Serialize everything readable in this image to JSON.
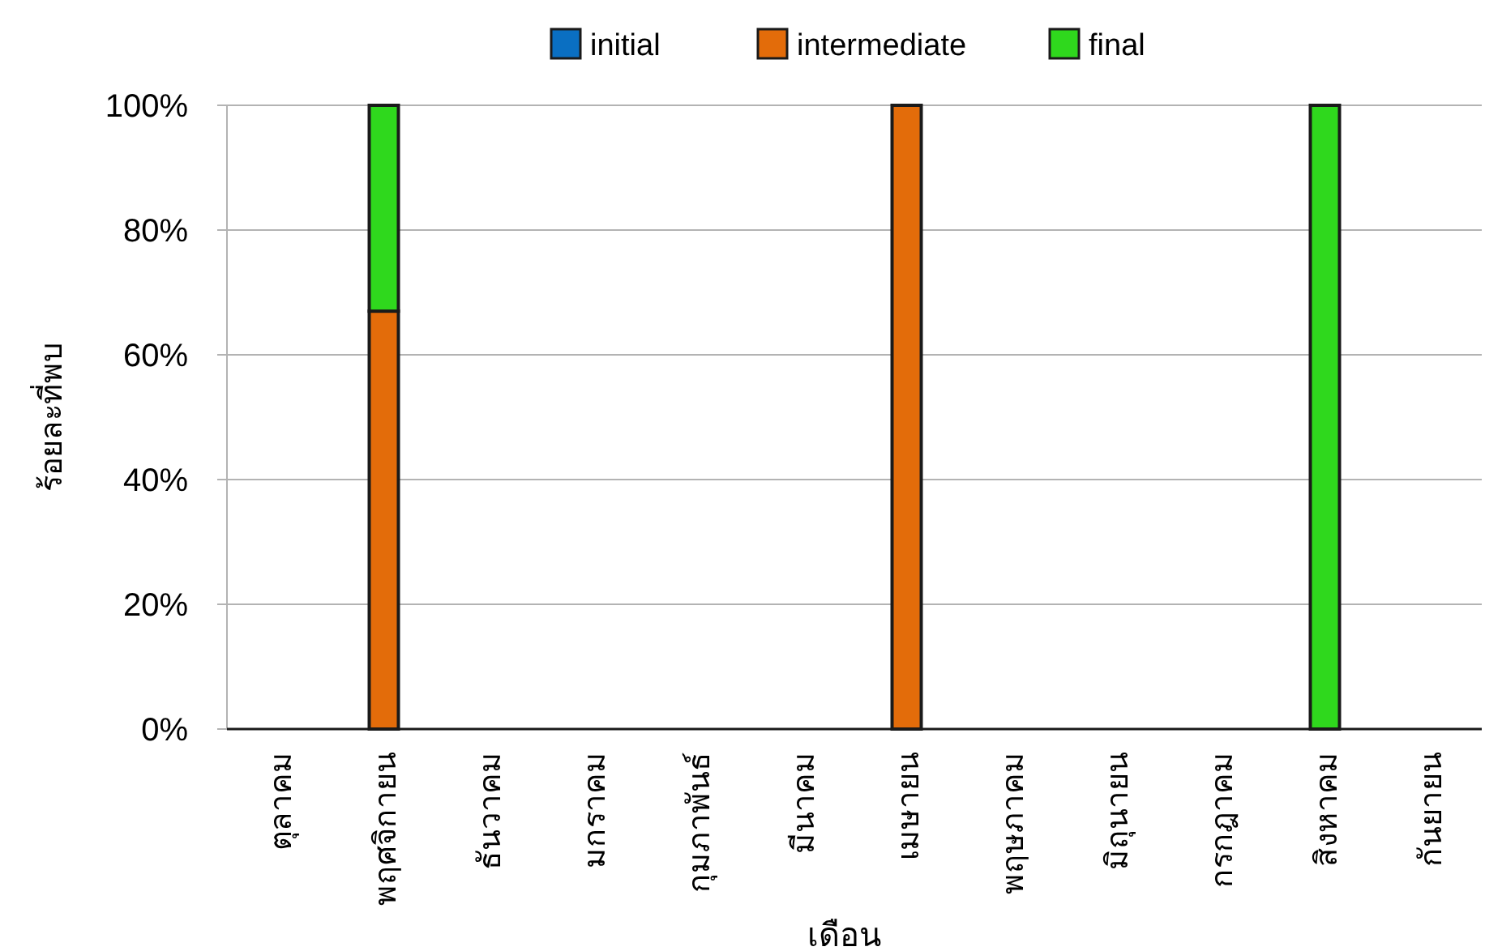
{
  "chart_data": {
    "type": "bar",
    "stacked": true,
    "xlabel": "เดือน",
    "ylabel": "ร้อยละที่พบ",
    "categories": [
      "ตุลาคม",
      "พฤศจิกายน",
      "ธันวาคม",
      "มกราคม",
      "กุมภาพันธ์",
      "มีนาคม",
      "เมษายน",
      "พฤษภาคม",
      "มิถุนายน",
      "กรกฎาคม",
      "สิงหาคม",
      "กันยายน"
    ],
    "series": [
      {
        "name": "initial",
        "color": "#0a6fc2",
        "values": [
          null,
          null,
          null,
          null,
          null,
          null,
          null,
          null,
          null,
          null,
          null,
          null
        ]
      },
      {
        "name": "intermediate",
        "color": "#e36c0a",
        "values": [
          null,
          67,
          null,
          null,
          null,
          null,
          100,
          null,
          null,
          null,
          null,
          null
        ]
      },
      {
        "name": "final",
        "color": "#2fd81d",
        "values": [
          null,
          33,
          null,
          null,
          null,
          null,
          null,
          null,
          null,
          null,
          100,
          null
        ]
      }
    ],
    "ylim": [
      0,
      100
    ],
    "yticks": [
      {
        "value": 0,
        "label": "0%"
      },
      {
        "value": 20,
        "label": "20%"
      },
      {
        "value": 40,
        "label": "40%"
      },
      {
        "value": 60,
        "label": "60%"
      },
      {
        "value": 80,
        "label": "80%"
      },
      {
        "value": 100,
        "label": "100%"
      }
    ],
    "grid": "y",
    "legend": "top"
  }
}
